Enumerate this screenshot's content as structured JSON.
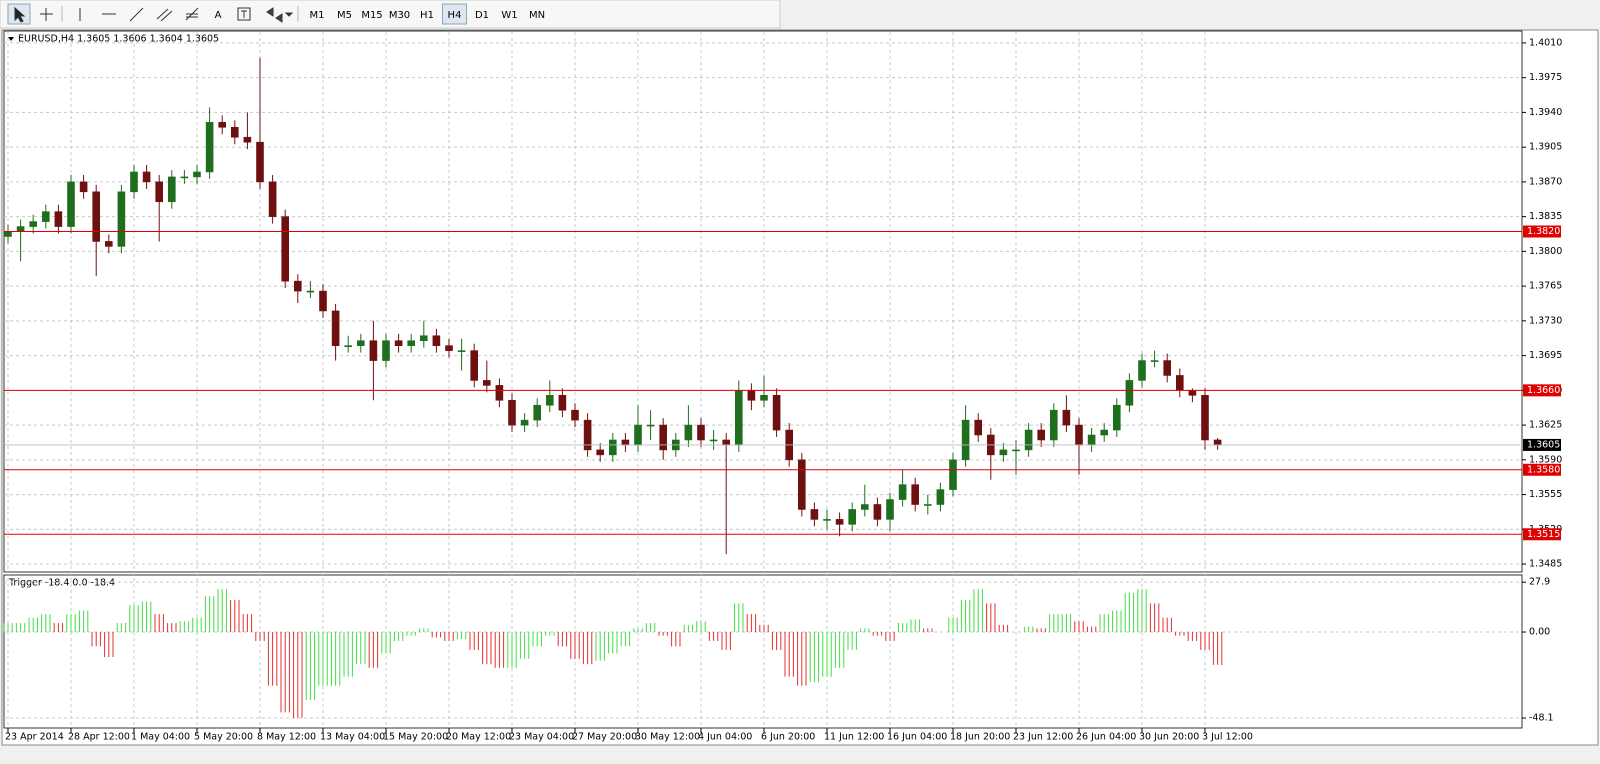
{
  "toolbar": {
    "tools": [
      "A"
    ],
    "timeframes": [
      "M1",
      "M5",
      "M15",
      "M30",
      "H1",
      "H4",
      "D1",
      "W1",
      "MN"
    ],
    "active": "H4"
  },
  "chart_data": [
    {
      "type": "candlestick",
      "title": "EURUSD,H4  1.3605 1.3606 1.3604 1.3605",
      "categories": [
        "23 Apr 2014",
        null,
        null,
        null,
        null,
        "28 Apr 12:00",
        null,
        null,
        null,
        null,
        "1 May 04:00",
        null,
        null,
        null,
        null,
        "5 May 20:00",
        null,
        null,
        null,
        null,
        "8 May 12:00",
        null,
        null,
        null,
        null,
        "13 May 04:00",
        null,
        null,
        null,
        null,
        "15 May 20:00",
        null,
        null,
        null,
        null,
        "20 May 12:00",
        null,
        null,
        null,
        null,
        "23 May 04:00",
        null,
        null,
        null,
        null,
        "27 May 20:00",
        null,
        null,
        null,
        null,
        "30 May 12:00",
        null,
        null,
        null,
        null,
        "4 Jun 04:00",
        null,
        null,
        null,
        null,
        "6 Jun 20:00",
        null,
        null,
        null,
        null,
        "11 Jun 12:00",
        null,
        null,
        null,
        null,
        "16 Jun 04:00",
        null,
        null,
        null,
        null,
        "18 Jun 20:00",
        null,
        null,
        null,
        null,
        "23 Jun 12:00",
        null,
        null,
        null,
        null,
        "26 Jun 04:00",
        null,
        null,
        null,
        null,
        "30 Jun 20:00",
        null,
        null,
        null,
        null,
        "3 Jul 12:00",
        null
      ],
      "open": [
        1.3815,
        1.382,
        1.3825,
        1.383,
        1.384,
        1.3825,
        1.387,
        1.386,
        1.381,
        1.3805,
        1.386,
        1.388,
        1.387,
        1.385,
        1.3875,
        1.3875,
        1.388,
        1.393,
        1.3925,
        1.3915,
        1.391,
        1.387,
        1.3835,
        1.377,
        1.376,
        1.376,
        1.374,
        1.3705,
        1.3705,
        1.371,
        1.369,
        1.371,
        1.3705,
        1.371,
        1.3715,
        1.3705,
        1.37,
        1.37,
        1.367,
        1.3665,
        1.365,
        1.3625,
        1.363,
        1.3645,
        1.3655,
        1.364,
        1.363,
        1.36,
        1.3595,
        1.361,
        1.3605,
        1.3625,
        1.3625,
        1.36,
        1.361,
        1.3625,
        1.361,
        1.361,
        1.3605,
        1.366,
        1.365,
        1.3655,
        1.362,
        1.359,
        1.354,
        1.353,
        1.353,
        1.3525,
        1.354,
        1.3545,
        1.353,
        1.355,
        1.3565,
        1.3545,
        1.3545,
        1.356,
        1.359,
        1.363,
        1.3615,
        1.3595,
        1.36,
        1.36,
        1.362,
        1.361,
        1.364,
        1.3625,
        1.3605,
        1.3615,
        1.362,
        1.3645,
        1.367,
        1.369,
        1.369,
        1.3675,
        1.366,
        1.3655,
        1.361
      ],
      "high": [
        1.3827,
        1.3832,
        1.3837,
        1.3847,
        1.3847,
        1.3877,
        1.3877,
        1.3867,
        1.3817,
        1.3867,
        1.3887,
        1.3887,
        1.3877,
        1.3882,
        1.3882,
        1.3887,
        1.3945,
        1.3937,
        1.3932,
        1.394,
        1.3995,
        1.3877,
        1.3842,
        1.3777,
        1.377,
        1.3767,
        1.3747,
        1.3715,
        1.3717,
        1.373,
        1.3717,
        1.3717,
        1.3717,
        1.373,
        1.3722,
        1.3712,
        1.3712,
        1.3707,
        1.369,
        1.3672,
        1.3657,
        1.3637,
        1.3652,
        1.367,
        1.3662,
        1.3647,
        1.3637,
        1.3607,
        1.3617,
        1.3617,
        1.3645,
        1.364,
        1.3632,
        1.3617,
        1.3645,
        1.3632,
        1.362,
        1.3617,
        1.367,
        1.3667,
        1.3675,
        1.3662,
        1.3627,
        1.3597,
        1.3547,
        1.354,
        1.3537,
        1.3547,
        1.3565,
        1.3552,
        1.3557,
        1.358,
        1.3572,
        1.3555,
        1.3567,
        1.3597,
        1.3645,
        1.3637,
        1.3622,
        1.3607,
        1.361,
        1.3627,
        1.3627,
        1.3647,
        1.3655,
        1.3632,
        1.3622,
        1.3627,
        1.3652,
        1.3677,
        1.3697,
        1.37,
        1.3697,
        1.3682,
        1.3662,
        1.3662,
        1.3612
      ],
      "low": [
        1.3808,
        1.379,
        1.3818,
        1.3823,
        1.3818,
        1.3818,
        1.3853,
        1.3775,
        1.3798,
        1.3798,
        1.3853,
        1.3863,
        1.381,
        1.3843,
        1.3868,
        1.3868,
        1.3873,
        1.3918,
        1.3908,
        1.3903,
        1.3863,
        1.3828,
        1.3763,
        1.3748,
        1.3753,
        1.3733,
        1.369,
        1.3698,
        1.3698,
        1.365,
        1.3683,
        1.3698,
        1.3698,
        1.3703,
        1.3698,
        1.3693,
        1.368,
        1.3663,
        1.3658,
        1.3643,
        1.3618,
        1.3618,
        1.3623,
        1.3638,
        1.3633,
        1.3623,
        1.3593,
        1.3588,
        1.3588,
        1.3598,
        1.3598,
        1.361,
        1.359,
        1.3593,
        1.3603,
        1.3603,
        1.36,
        1.3495,
        1.3598,
        1.364,
        1.3643,
        1.3613,
        1.3583,
        1.3533,
        1.3523,
        1.352,
        1.3513,
        1.3518,
        1.3533,
        1.3523,
        1.3518,
        1.3543,
        1.3538,
        1.3535,
        1.3538,
        1.3553,
        1.3583,
        1.3608,
        1.357,
        1.3588,
        1.3575,
        1.3593,
        1.3603,
        1.3603,
        1.3618,
        1.3575,
        1.3598,
        1.3608,
        1.3613,
        1.3638,
        1.3663,
        1.3683,
        1.3668,
        1.3653,
        1.3648,
        1.36,
        1.36
      ],
      "close": [
        1.382,
        1.3825,
        1.383,
        1.384,
        1.3825,
        1.387,
        1.386,
        1.381,
        1.3805,
        1.386,
        1.388,
        1.387,
        1.385,
        1.3875,
        1.3875,
        1.388,
        1.393,
        1.3925,
        1.3915,
        1.391,
        1.387,
        1.3835,
        1.377,
        1.376,
        1.376,
        1.374,
        1.3705,
        1.3705,
        1.371,
        1.369,
        1.371,
        1.3705,
        1.371,
        1.3715,
        1.3705,
        1.37,
        1.37,
        1.367,
        1.3665,
        1.365,
        1.3625,
        1.363,
        1.3645,
        1.3655,
        1.364,
        1.363,
        1.36,
        1.3595,
        1.361,
        1.3605,
        1.3625,
        1.3625,
        1.36,
        1.361,
        1.3625,
        1.361,
        1.361,
        1.3605,
        1.366,
        1.365,
        1.3655,
        1.362,
        1.359,
        1.354,
        1.353,
        1.353,
        1.3525,
        1.354,
        1.3545,
        1.353,
        1.355,
        1.3565,
        1.3545,
        1.3545,
        1.356,
        1.359,
        1.363,
        1.3615,
        1.3595,
        1.36,
        1.36,
        1.362,
        1.361,
        1.364,
        1.3625,
        1.3605,
        1.3615,
        1.362,
        1.3645,
        1.367,
        1.369,
        1.369,
        1.3675,
        1.366,
        1.3655,
        1.361,
        1.3605
      ],
      "up_color": "#1e6e1e",
      "down_color": "#6e1010",
      "ylim": [
        1.3477,
        1.4022
      ],
      "yticks": [
        {
          "value": 1.401,
          "label": "1.4010"
        },
        {
          "value": 1.3975,
          "label": "1.3975"
        },
        {
          "value": 1.394,
          "label": "1.3940"
        },
        {
          "value": 1.3905,
          "label": "1.3905"
        },
        {
          "value": 1.387,
          "label": "1.3870"
        },
        {
          "value": 1.3835,
          "label": "1.3835"
        },
        {
          "value": 1.38,
          "label": "1.3800"
        },
        {
          "value": 1.3765,
          "label": "1.3765"
        },
        {
          "value": 1.373,
          "label": "1.3730"
        },
        {
          "value": 1.3695,
          "label": "1.3695"
        },
        {
          "value": 1.366,
          "label": "1.3660"
        },
        {
          "value": 1.3625,
          "label": "1.3625"
        },
        {
          "value": 1.359,
          "label": "1.3590"
        },
        {
          "value": 1.3555,
          "label": "1.3555"
        },
        {
          "value": 1.352,
          "label": "1.3520"
        },
        {
          "value": 1.3485,
          "label": "1.3485"
        }
      ],
      "grid": true,
      "levels": [
        {
          "value": 1.382,
          "label": "1.3820"
        },
        {
          "value": 1.366,
          "label": "1.3660"
        },
        {
          "value": 1.358,
          "label": "1.3580"
        },
        {
          "value": 1.3515,
          "label": "1.3515"
        }
      ],
      "level_color": "#e00000",
      "current": {
        "value": 1.3605,
        "label": "1.3605"
      }
    },
    {
      "type": "histogram",
      "title": "Trigger -18.4 0.0 -18.4",
      "values": [
        5,
        5,
        8,
        10,
        5,
        10,
        12,
        -8,
        -14,
        5,
        15,
        17,
        10,
        5,
        6,
        8,
        20,
        24,
        18,
        10,
        -5,
        -30,
        -45,
        -48,
        -38,
        -30,
        -30,
        -25,
        -18,
        -20,
        -12,
        -5,
        -2,
        2,
        -3,
        -5,
        -4,
        -10,
        -18,
        -20,
        -20,
        -15,
        -8,
        -2,
        -8,
        -15,
        -18,
        -16,
        -12,
        -8,
        2,
        5,
        -2,
        -8,
        4,
        6,
        -5,
        -10,
        16,
        10,
        4,
        -10,
        -25,
        -30,
        -28,
        -25,
        -20,
        -10,
        2,
        -2,
        -5,
        5,
        7,
        2,
        0,
        8,
        18,
        24,
        16,
        4,
        0,
        3,
        2,
        10,
        10,
        6,
        3,
        10,
        12,
        22,
        24,
        16,
        8,
        -2,
        -5,
        -10,
        -18.4
      ],
      "up_color": "#44dd44",
      "down_color": "#e03030",
      "ylim": [
        -53.7,
        31.9
      ],
      "yticks": [
        27.9,
        {
          "value": 0,
          "label": "0.00"
        },
        -48.1
      ],
      "grid": true
    }
  ]
}
